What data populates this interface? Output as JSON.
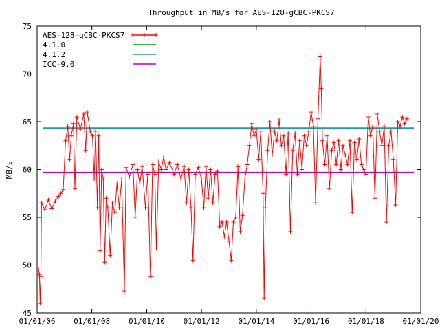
{
  "chart_data": {
    "type": "line",
    "title": "Throughput in MB/s for AES-128-gCBC-PKCS7",
    "xlabel": "",
    "ylabel": "MB/s",
    "ylim": [
      45,
      75
    ],
    "xlim": [
      "2006-01-01",
      "2020-01-01"
    ],
    "y_ticks": [
      "45",
      "50",
      "55",
      "60",
      "65",
      "70",
      "75"
    ],
    "x_ticks": [
      "01/01/06",
      "01/01/08",
      "01/01/10",
      "01/01/12",
      "01/01/14",
      "01/01/16",
      "01/01/18",
      "01/01/20"
    ],
    "grid": false,
    "legend_position": "top-left",
    "series": [
      {
        "name": "AES-128-gCBC-PKCS7",
        "color": "#ff0000",
        "marker": "plus",
        "points": [
          [
            "2006-01-20",
            49.5
          ],
          [
            "2006-02-01",
            49.0
          ],
          [
            "2006-02-10",
            46.0
          ],
          [
            "2006-02-20",
            48.8
          ],
          [
            "2006-03-01",
            56.5
          ],
          [
            "2006-04-15",
            55.8
          ],
          [
            "2006-06-01",
            56.8
          ],
          [
            "2006-07-15",
            55.9
          ],
          [
            "2006-09-01",
            56.7
          ],
          [
            "2006-10-15",
            57.2
          ],
          [
            "2006-11-15",
            57.5
          ],
          [
            "2006-12-15",
            57.9
          ],
          [
            "2007-01-15",
            63.0
          ],
          [
            "2007-02-15",
            64.5
          ],
          [
            "2007-03-10",
            61.0
          ],
          [
            "2007-04-01",
            63.5
          ],
          [
            "2007-05-01",
            64.8
          ],
          [
            "2007-05-20",
            58.0
          ],
          [
            "2007-06-15",
            65.5
          ],
          [
            "2007-08-01",
            64.2
          ],
          [
            "2007-09-15",
            65.8
          ],
          [
            "2007-10-10",
            62.0
          ],
          [
            "2007-11-01",
            66.0
          ],
          [
            "2007-12-10",
            64.0
          ],
          [
            "2008-01-10",
            63.5
          ],
          [
            "2008-02-01",
            59.0
          ],
          [
            "2008-02-20",
            64.0
          ],
          [
            "2008-03-15",
            56.0
          ],
          [
            "2008-04-01",
            63.5
          ],
          [
            "2008-04-20",
            51.5
          ],
          [
            "2008-05-10",
            60.0
          ],
          [
            "2008-06-01",
            59.0
          ],
          [
            "2008-06-20",
            50.3
          ],
          [
            "2008-07-10",
            57.0
          ],
          [
            "2008-08-01",
            56.0
          ],
          [
            "2008-09-01",
            51.0
          ],
          [
            "2008-10-01",
            56.5
          ],
          [
            "2008-11-01",
            55.5
          ],
          [
            "2008-12-01",
            58.5
          ],
          [
            "2009-01-01",
            56.0
          ],
          [
            "2009-02-01",
            59.0
          ],
          [
            "2009-03-10",
            47.3
          ],
          [
            "2009-04-01",
            60.2
          ],
          [
            "2009-05-15",
            59.2
          ],
          [
            "2009-07-01",
            60.5
          ],
          [
            "2009-08-01",
            55.0
          ],
          [
            "2009-09-01",
            60.0
          ],
          [
            "2009-10-01",
            58.5
          ],
          [
            "2009-11-01",
            60.3
          ],
          [
            "2009-12-15",
            56.0
          ],
          [
            "2010-01-15",
            59.5
          ],
          [
            "2010-02-20",
            48.8
          ],
          [
            "2010-03-20",
            60.5
          ],
          [
            "2010-04-20",
            59.5
          ],
          [
            "2010-05-10",
            51.8
          ],
          [
            "2010-06-10",
            60.8
          ],
          [
            "2010-07-15",
            60.0
          ],
          [
            "2010-08-15",
            61.3
          ],
          [
            "2010-09-15",
            60.0
          ],
          [
            "2010-11-01",
            60.7
          ],
          [
            "2011-01-01",
            59.5
          ],
          [
            "2011-02-15",
            60.5
          ],
          [
            "2011-04-01",
            59.0
          ],
          [
            "2011-05-15",
            60.3
          ],
          [
            "2011-06-15",
            56.5
          ],
          [
            "2011-07-15",
            60.0
          ],
          [
            "2011-08-15",
            56.0
          ],
          [
            "2011-09-10",
            50.5
          ],
          [
            "2011-10-10",
            59.5
          ],
          [
            "2011-11-20",
            60.2
          ],
          [
            "2012-01-01",
            59.0
          ],
          [
            "2012-02-01",
            56.0
          ],
          [
            "2012-03-01",
            60.3
          ],
          [
            "2012-04-01",
            57.0
          ],
          [
            "2012-05-01",
            60.0
          ],
          [
            "2012-06-01",
            56.5
          ],
          [
            "2012-07-01",
            59.5
          ],
          [
            "2012-08-01",
            59.8
          ],
          [
            "2012-09-01",
            54.0
          ],
          [
            "2012-10-01",
            54.5
          ],
          [
            "2012-11-01",
            53.0
          ],
          [
            "2012-12-01",
            54.5
          ],
          [
            "2013-01-01",
            52.5
          ],
          [
            "2013-02-01",
            50.5
          ],
          [
            "2013-03-01",
            54.5
          ],
          [
            "2013-04-01",
            55.0
          ],
          [
            "2013-05-01",
            60.3
          ],
          [
            "2013-06-01",
            53.5
          ],
          [
            "2013-07-01",
            55.2
          ],
          [
            "2013-08-01",
            59.0
          ],
          [
            "2013-09-01",
            60.5
          ],
          [
            "2013-10-01",
            62.5
          ],
          [
            "2013-11-01",
            64.8
          ],
          [
            "2013-12-01",
            63.5
          ],
          [
            "2014-01-01",
            64.2
          ],
          [
            "2014-02-01",
            61.0
          ],
          [
            "2014-03-01",
            64.0
          ],
          [
            "2014-04-01",
            57.5
          ],
          [
            "2014-04-15",
            46.5
          ],
          [
            "2014-05-01",
            56.0
          ],
          [
            "2014-06-01",
            62.0
          ],
          [
            "2014-07-01",
            65.0
          ],
          [
            "2014-08-01",
            61.5
          ],
          [
            "2014-09-01",
            64.0
          ],
          [
            "2014-10-01",
            63.0
          ],
          [
            "2014-11-01",
            65.2
          ],
          [
            "2014-12-01",
            62.5
          ],
          [
            "2015-01-01",
            63.5
          ],
          [
            "2015-02-01",
            59.5
          ],
          [
            "2015-03-01",
            63.8
          ],
          [
            "2015-04-01",
            53.5
          ],
          [
            "2015-05-01",
            62.0
          ],
          [
            "2015-06-01",
            63.8
          ],
          [
            "2015-07-01",
            59.5
          ],
          [
            "2015-08-01",
            63.0
          ],
          [
            "2015-09-01",
            60.0
          ],
          [
            "2015-10-01",
            63.5
          ],
          [
            "2015-11-01",
            62.5
          ],
          [
            "2015-12-01",
            64.0
          ],
          [
            "2016-01-01",
            66.0
          ],
          [
            "2016-02-01",
            64.5
          ],
          [
            "2016-03-01",
            56.5
          ],
          [
            "2016-04-01",
            65.3
          ],
          [
            "2016-05-01",
            71.8
          ],
          [
            "2016-05-15",
            68.5
          ],
          [
            "2016-06-01",
            63.0
          ],
          [
            "2016-07-01",
            60.5
          ],
          [
            "2016-08-01",
            63.5
          ],
          [
            "2016-09-01",
            58.0
          ],
          [
            "2016-10-01",
            62.0
          ],
          [
            "2016-11-01",
            62.8
          ],
          [
            "2016-12-01",
            60.5
          ],
          [
            "2017-01-01",
            63.0
          ],
          [
            "2017-02-01",
            60.0
          ],
          [
            "2017-03-01",
            62.5
          ],
          [
            "2017-04-01",
            61.5
          ],
          [
            "2017-05-01",
            60.5
          ],
          [
            "2017-06-01",
            63.0
          ],
          [
            "2017-07-01",
            55.5
          ],
          [
            "2017-08-01",
            62.8
          ],
          [
            "2017-09-01",
            61.0
          ],
          [
            "2017-10-01",
            63.2
          ],
          [
            "2017-11-01",
            60.5
          ],
          [
            "2017-12-01",
            60.0
          ],
          [
            "2018-01-01",
            59.5
          ],
          [
            "2018-02-01",
            65.5
          ],
          [
            "2018-03-01",
            63.5
          ],
          [
            "2018-04-01",
            64.5
          ],
          [
            "2018-05-01",
            57.0
          ],
          [
            "2018-06-01",
            65.8
          ],
          [
            "2018-07-01",
            64.0
          ],
          [
            "2018-08-01",
            62.5
          ],
          [
            "2018-09-01",
            64.5
          ],
          [
            "2018-10-01",
            54.5
          ],
          [
            "2018-11-01",
            62.5
          ],
          [
            "2018-12-01",
            64.0
          ],
          [
            "2019-01-01",
            61.0
          ],
          [
            "2019-02-01",
            56.3
          ],
          [
            "2019-03-01",
            65.0
          ],
          [
            "2019-04-01",
            64.5
          ],
          [
            "2019-05-01",
            65.5
          ],
          [
            "2019-06-01",
            64.8
          ],
          [
            "2019-07-01",
            65.3
          ]
        ]
      },
      {
        "name": "4.1.0",
        "color": "#00a000",
        "y": 64.25
      },
      {
        "name": "4.1.2",
        "color": "#2090c0",
        "y": 64.35
      },
      {
        "name": "ICC-9.0",
        "color": "#c000c0",
        "y": 59.7
      }
    ]
  }
}
